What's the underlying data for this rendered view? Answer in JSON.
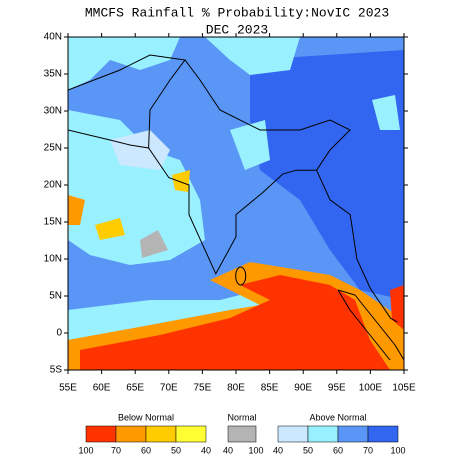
{
  "title": "MMCFS Rainfall % Probability:NovIC 2023",
  "subtitle": "DEC 2023",
  "lat_ticks": [
    "40N",
    "35N",
    "30N",
    "25N",
    "20N",
    "15N",
    "10N",
    "5N",
    "0",
    "5S"
  ],
  "lon_ticks": [
    "55E",
    "60E",
    "65E",
    "70E",
    "75E",
    "80E",
    "85E",
    "90E",
    "95E",
    "100E",
    "105E"
  ],
  "legend": [
    {
      "label": "Below Normal",
      "colors": [
        "#ff3300",
        "#ff9900",
        "#ffcc00",
        "#ffff33"
      ],
      "ticks": [
        "100",
        "70",
        "60",
        "50",
        "40"
      ]
    },
    {
      "label": "Normal",
      "colors": [
        "#b4b4b4"
      ],
      "ticks": [
        "40",
        "100"
      ]
    },
    {
      "label": "Above Normal",
      "colors": [
        "#cce8ff",
        "#99f0ff",
        "#5a96f5",
        "#3366f0"
      ],
      "ticks": [
        "40",
        "50",
        "60",
        "70",
        "100"
      ]
    }
  ]
}
